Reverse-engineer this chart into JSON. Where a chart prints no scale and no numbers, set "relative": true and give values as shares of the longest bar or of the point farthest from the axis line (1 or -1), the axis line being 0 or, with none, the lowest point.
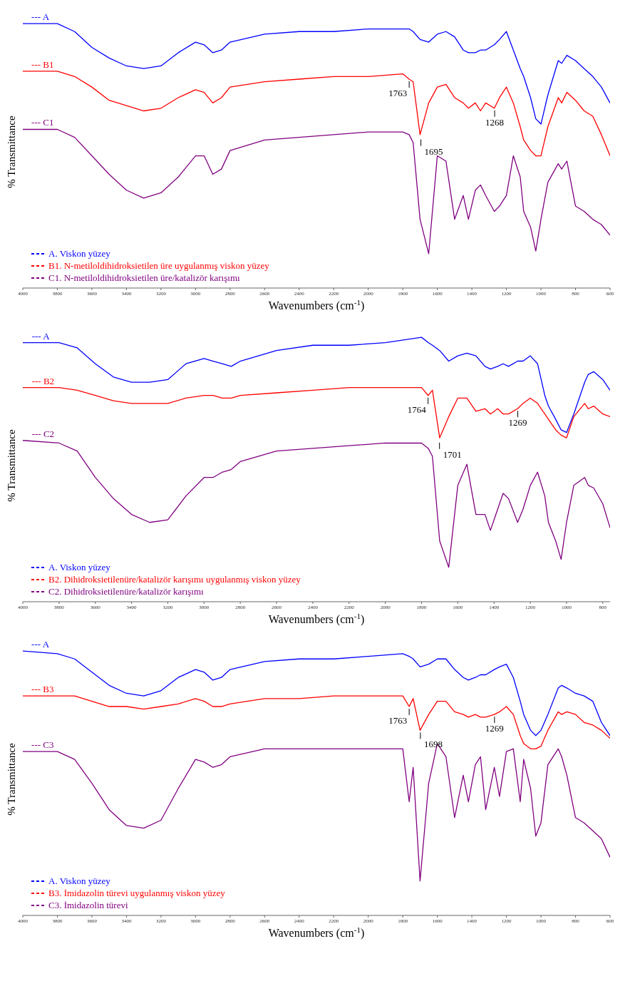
{
  "chart_data": [
    {
      "type": "line",
      "relative": true,
      "xlabel": "Wavenumbers (cm$^{-1}$)",
      "ylabel": "% Transmittance",
      "legend": "bottom left",
      "grid": false,
      "marker": "none",
      "line_style": "solid",
      "xlim": [
        4000,
        600
      ],
      "xticks": [
        4000,
        3800,
        3600,
        3400,
        3200,
        3000,
        2800,
        2600,
        2400,
        2200,
        2000,
        1800,
        1600,
        1400,
        1200,
        1000,
        800,
        600
      ],
      "x": [
        4000,
        3800,
        3700,
        3600,
        3500,
        3400,
        3300,
        3200,
        3100,
        3000,
        2950,
        2900,
        2850,
        2800,
        2600,
        2400,
        2200,
        2000,
        1800,
        1763,
        1740,
        1700,
        1650,
        1600,
        1550,
        1500,
        1450,
        1420,
        1380,
        1350,
        1320,
        1270,
        1240,
        1200,
        1160,
        1120,
        1100,
        1060,
        1030,
        1000,
        960,
        900,
        880,
        850,
        800,
        750,
        700,
        650,
        600
      ],
      "series": [
        {
          "name": "A. Viskon yüzey",
          "color": "#0000ff",
          "values": [
            1.0,
            1.0,
            0.97,
            0.91,
            0.87,
            0.84,
            0.83,
            0.84,
            0.89,
            0.93,
            0.92,
            0.89,
            0.9,
            0.93,
            0.96,
            0.97,
            0.97,
            0.98,
            0.98,
            0.98,
            0.97,
            0.94,
            0.93,
            0.96,
            0.97,
            0.95,
            0.9,
            0.89,
            0.89,
            0.9,
            0.9,
            0.92,
            0.94,
            0.97,
            0.9,
            0.83,
            0.8,
            0.72,
            0.64,
            0.62,
            0.73,
            0.86,
            0.85,
            0.88,
            0.86,
            0.83,
            0.8,
            0.76,
            0.7
          ]
        },
        {
          "name": "B1. N-metiloldihidroksietilen üre uygulanmış viskon yüzey",
          "color": "#ff0000",
          "values": [
            0.82,
            0.82,
            0.8,
            0.76,
            0.71,
            0.69,
            0.67,
            0.68,
            0.72,
            0.75,
            0.74,
            0.7,
            0.72,
            0.76,
            0.78,
            0.79,
            0.8,
            0.8,
            0.81,
            0.79,
            0.78,
            0.58,
            0.7,
            0.76,
            0.77,
            0.72,
            0.7,
            0.68,
            0.7,
            0.67,
            0.7,
            0.68,
            0.72,
            0.76,
            0.7,
            0.61,
            0.56,
            0.52,
            0.5,
            0.5,
            0.61,
            0.72,
            0.7,
            0.74,
            0.71,
            0.67,
            0.65,
            0.58,
            0.5
          ]
        },
        {
          "name": "C1. N-metiloldihidroksietilen üre/katalizör karışımı",
          "color": "#800080",
          "values": [
            0.6,
            0.6,
            0.57,
            0.5,
            0.43,
            0.37,
            0.34,
            0.36,
            0.42,
            0.5,
            0.5,
            0.43,
            0.45,
            0.52,
            0.56,
            0.57,
            0.58,
            0.59,
            0.59,
            0.58,
            0.55,
            0.26,
            0.13,
            0.5,
            0.48,
            0.26,
            0.35,
            0.26,
            0.37,
            0.39,
            0.35,
            0.29,
            0.31,
            0.35,
            0.5,
            0.42,
            0.29,
            0.23,
            0.14,
            0.26,
            0.4,
            0.47,
            0.45,
            0.48,
            0.31,
            0.29,
            0.26,
            0.24,
            0.2
          ]
        }
      ],
      "annotations": [
        {
          "text": "--- A",
          "x": 3950,
          "y": 1.0
        },
        {
          "text": "--- B1",
          "x": 3950,
          "y": 0.82
        },
        {
          "text": "--- C1",
          "x": 3950,
          "y": 0.6
        },
        {
          "text": "1763",
          "x": 1763,
          "y": 0.79
        },
        {
          "text": "1695",
          "x": 1695,
          "y": 0.57
        },
        {
          "text": "1268",
          "x": 1268,
          "y": 0.68
        }
      ]
    },
    {
      "type": "line",
      "relative": true,
      "xlabel": "Wavenumbers (cm$^{-1}$)",
      "ylabel": "% Transmittance",
      "legend": "bottom left",
      "grid": false,
      "marker": "none",
      "line_style": "solid",
      "xlim": [
        4000,
        760
      ],
      "xticks": [
        4000,
        3800,
        3600,
        3400,
        3200,
        3000,
        2800,
        2600,
        2400,
        2200,
        2000,
        1800,
        1600,
        1400,
        1200,
        1000,
        800
      ],
      "x": [
        4000,
        3800,
        3700,
        3600,
        3500,
        3400,
        3300,
        3200,
        3100,
        3000,
        2950,
        2900,
        2850,
        2800,
        2600,
        2400,
        2200,
        2000,
        1800,
        1763,
        1740,
        1700,
        1650,
        1600,
        1550,
        1500,
        1450,
        1420,
        1380,
        1350,
        1320,
        1270,
        1240,
        1200,
        1160,
        1120,
        1100,
        1060,
        1030,
        1000,
        960,
        900,
        880,
        850,
        800,
        760
      ],
      "series": [
        {
          "name": "A. Viskon yüzey",
          "color": "#0000ff",
          "values": [
            0.98,
            0.98,
            0.96,
            0.9,
            0.85,
            0.83,
            0.83,
            0.84,
            0.9,
            0.92,
            0.91,
            0.9,
            0.89,
            0.91,
            0.95,
            0.97,
            0.97,
            0.98,
            1.0,
            0.98,
            0.97,
            0.95,
            0.91,
            0.93,
            0.94,
            0.93,
            0.89,
            0.88,
            0.89,
            0.9,
            0.89,
            0.91,
            0.91,
            0.93,
            0.9,
            0.78,
            0.74,
            0.69,
            0.65,
            0.64,
            0.71,
            0.83,
            0.86,
            0.87,
            0.84,
            0.8
          ]
        },
        {
          "name": "B2. Dihidroksietilenüre/katalizör karışımı uygulanmış viskon yüzey",
          "color": "#ff0000",
          "values": [
            0.81,
            0.81,
            0.8,
            0.78,
            0.76,
            0.75,
            0.75,
            0.75,
            0.77,
            0.78,
            0.78,
            0.77,
            0.77,
            0.78,
            0.79,
            0.8,
            0.81,
            0.81,
            0.81,
            0.78,
            0.8,
            0.62,
            0.7,
            0.77,
            0.77,
            0.72,
            0.73,
            0.71,
            0.73,
            0.71,
            0.71,
            0.73,
            0.75,
            0.77,
            0.75,
            0.71,
            0.69,
            0.65,
            0.63,
            0.62,
            0.7,
            0.75,
            0.73,
            0.74,
            0.71,
            0.7
          ]
        },
        {
          "name": "C2. Dihidroksietilenüre/katalizör karışımı",
          "color": "#800080",
          "values": [
            0.61,
            0.6,
            0.57,
            0.47,
            0.39,
            0.33,
            0.3,
            0.31,
            0.4,
            0.47,
            0.47,
            0.49,
            0.5,
            0.53,
            0.57,
            0.58,
            0.59,
            0.6,
            0.6,
            0.58,
            0.55,
            0.23,
            0.13,
            0.44,
            0.52,
            0.33,
            0.33,
            0.27,
            0.35,
            0.41,
            0.39,
            0.3,
            0.35,
            0.44,
            0.49,
            0.4,
            0.3,
            0.23,
            0.16,
            0.3,
            0.44,
            0.47,
            0.44,
            0.43,
            0.37,
            0.28
          ]
        }
      ],
      "annotations": [
        {
          "text": "--- A",
          "x": 3950,
          "y": 0.98
        },
        {
          "text": "--- B2",
          "x": 3950,
          "y": 0.81
        },
        {
          "text": "--- C2",
          "x": 3950,
          "y": 0.61
        },
        {
          "text": "1764",
          "x": 1764,
          "y": 0.78
        },
        {
          "text": "1701",
          "x": 1701,
          "y": 0.61
        },
        {
          "text": "1269",
          "x": 1269,
          "y": 0.73
        }
      ]
    },
    {
      "type": "line",
      "relative": true,
      "xlabel": "Wavenumbers (cm$^{-1}$)",
      "ylabel": "% Transmittance",
      "legend": "bottom left",
      "grid": false,
      "marker": "none",
      "line_style": "solid",
      "xlim": [
        4000,
        600
      ],
      "xticks": [
        4000,
        3800,
        3600,
        3400,
        3200,
        3000,
        2800,
        2600,
        2400,
        2200,
        2000,
        1800,
        1600,
        1400,
        1200,
        1000,
        800,
        600
      ],
      "x": [
        4000,
        3800,
        3700,
        3600,
        3500,
        3400,
        3300,
        3200,
        3100,
        3000,
        2950,
        2900,
        2850,
        2800,
        2600,
        2400,
        2200,
        2000,
        1800,
        1763,
        1740,
        1700,
        1650,
        1600,
        1550,
        1500,
        1450,
        1420,
        1380,
        1350,
        1320,
        1270,
        1240,
        1200,
        1160,
        1120,
        1100,
        1060,
        1030,
        1000,
        960,
        900,
        880,
        850,
        800,
        750,
        700,
        650,
        600
      ],
      "series": [
        {
          "name": "A. Viskon yüzey",
          "color": "#0000ff",
          "values": [
            1.0,
            0.99,
            0.97,
            0.92,
            0.87,
            0.84,
            0.83,
            0.85,
            0.9,
            0.93,
            0.92,
            0.89,
            0.9,
            0.93,
            0.96,
            0.97,
            0.97,
            0.98,
            0.99,
            0.98,
            0.97,
            0.94,
            0.95,
            0.97,
            0.97,
            0.93,
            0.9,
            0.89,
            0.9,
            0.91,
            0.91,
            0.93,
            0.94,
            0.95,
            0.9,
            0.81,
            0.76,
            0.7,
            0.68,
            0.7,
            0.76,
            0.86,
            0.87,
            0.86,
            0.84,
            0.83,
            0.81,
            0.73,
            0.68
          ]
        },
        {
          "name": "B3. İmidazolin türevi uygulanmış viskon yüzey",
          "color": "#ff0000",
          "values": [
            0.83,
            0.83,
            0.83,
            0.81,
            0.79,
            0.79,
            0.78,
            0.79,
            0.8,
            0.82,
            0.81,
            0.79,
            0.79,
            0.8,
            0.82,
            0.82,
            0.83,
            0.83,
            0.83,
            0.79,
            0.82,
            0.7,
            0.76,
            0.81,
            0.81,
            0.77,
            0.76,
            0.75,
            0.76,
            0.75,
            0.75,
            0.76,
            0.77,
            0.79,
            0.76,
            0.68,
            0.65,
            0.63,
            0.63,
            0.64,
            0.7,
            0.77,
            0.76,
            0.77,
            0.76,
            0.73,
            0.72,
            0.7,
            0.67
          ]
        },
        {
          "name": "C3. İmidazolin türevi",
          "color": "#800080",
          "values": [
            0.62,
            0.62,
            0.59,
            0.5,
            0.4,
            0.34,
            0.33,
            0.36,
            0.48,
            0.59,
            0.58,
            0.56,
            0.57,
            0.6,
            0.63,
            0.63,
            0.63,
            0.63,
            0.63,
            0.43,
            0.56,
            0.13,
            0.5,
            0.65,
            0.6,
            0.37,
            0.53,
            0.43,
            0.57,
            0.6,
            0.4,
            0.56,
            0.45,
            0.62,
            0.63,
            0.43,
            0.59,
            0.48,
            0.3,
            0.35,
            0.57,
            0.63,
            0.6,
            0.53,
            0.37,
            0.35,
            0.32,
            0.29,
            0.22
          ]
        }
      ],
      "annotations": [
        {
          "text": "--- A",
          "x": 3950,
          "y": 1.0
        },
        {
          "text": "--- B3",
          "x": 3950,
          "y": 0.83
        },
        {
          "text": "--- C3",
          "x": 3950,
          "y": 0.62
        },
        {
          "text": "1763",
          "x": 1763,
          "y": 0.79
        },
        {
          "text": "1698",
          "x": 1698,
          "y": 0.7
        },
        {
          "text": "1269",
          "x": 1269,
          "y": 0.76
        }
      ]
    }
  ]
}
